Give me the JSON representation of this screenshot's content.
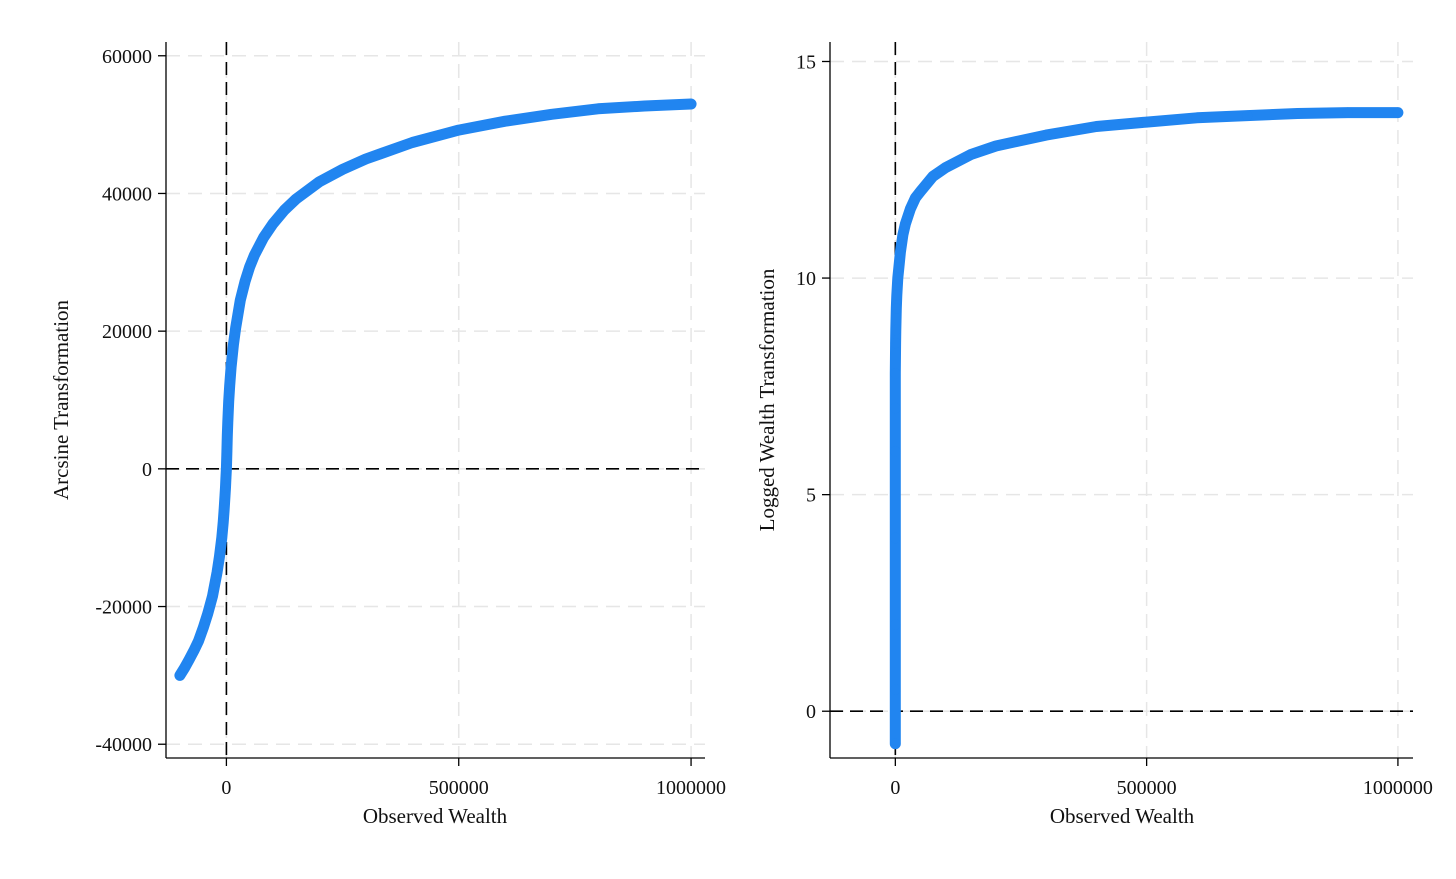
{
  "chart_data": [
    {
      "type": "line",
      "xlabel": "Observed Wealth",
      "ylabel": "Arcsine Transformation",
      "xlim": [
        -130000,
        1030000
      ],
      "ylim": [
        -42000,
        62000
      ],
      "x_ticks": [
        0,
        500000,
        1000000
      ],
      "x_tick_labels": [
        "0",
        "500000",
        "1000000"
      ],
      "y_ticks": [
        -40000,
        -20000,
        0,
        20000,
        40000,
        60000
      ],
      "y_tick_labels": [
        "-40000",
        "-20000",
        "0",
        "20000",
        "40000",
        "60000"
      ],
      "grid": true,
      "reference_lines": {
        "x": 0,
        "y": 0
      },
      "series": [
        {
          "color": "#2185F0",
          "x": [
            -100000,
            -90000,
            -80000,
            -70000,
            -60000,
            -50000,
            -40000,
            -30000,
            -20000,
            -15000,
            -10000,
            -7000,
            -5000,
            -3000,
            -2000,
            -1000,
            0,
            1000,
            2000,
            3000,
            5000,
            7000,
            10000,
            15000,
            20000,
            30000,
            40000,
            50000,
            60000,
            80000,
            100000,
            125000,
            150000,
            200000,
            250000,
            300000,
            400000,
            500000,
            600000,
            700000,
            800000,
            900000,
            1000000
          ],
          "y": [
            -30000,
            -28900,
            -27700,
            -26400,
            -25000,
            -23100,
            -21000,
            -18500,
            -15000,
            -12800,
            -10000,
            -7800,
            -6000,
            -3900,
            -2700,
            -1400,
            0,
            2500,
            4800,
            6800,
            9800,
            12100,
            14800,
            18000,
            20500,
            24500,
            27200,
            29300,
            31000,
            33600,
            35600,
            37600,
            39200,
            41700,
            43500,
            45000,
            47400,
            49200,
            50500,
            51500,
            52300,
            52700,
            53000
          ]
        }
      ]
    },
    {
      "type": "line",
      "xlabel": "Observed Wealth",
      "ylabel": "Logged Wealth Transformation",
      "xlim": [
        -130000,
        1030000
      ],
      "ylim": [
        -1.08,
        15.45
      ],
      "x_ticks": [
        0,
        500000,
        1000000
      ],
      "x_tick_labels": [
        "0",
        "500000",
        "1000000"
      ],
      "y_ticks": [
        0,
        5,
        10,
        15
      ],
      "y_tick_labels": [
        "0",
        "5",
        "10",
        "15"
      ],
      "grid": true,
      "reference_lines": {
        "x": 0,
        "y": 0
      },
      "series": [
        {
          "color": "#2185F0",
          "x": [
            0,
            0,
            0,
            0,
            0,
            0,
            0,
            500,
            1000,
            2000,
            3000,
            5000,
            7000,
            10000,
            15000,
            20000,
            30000,
            40000,
            50000,
            75000,
            100000,
            150000,
            200000,
            300000,
            400000,
            500000,
            600000,
            700000,
            800000,
            900000,
            1000000
          ],
          "y": [
            -0.75,
            0.5,
            2,
            4,
            6,
            7,
            7.8,
            8.5,
            8.8,
            9.3,
            9.6,
            10.0,
            10.25,
            10.6,
            11.0,
            11.25,
            11.6,
            11.85,
            12.0,
            12.35,
            12.55,
            12.85,
            13.05,
            13.3,
            13.5,
            13.6,
            13.7,
            13.75,
            13.8,
            13.82,
            13.82
          ]
        }
      ]
    }
  ]
}
